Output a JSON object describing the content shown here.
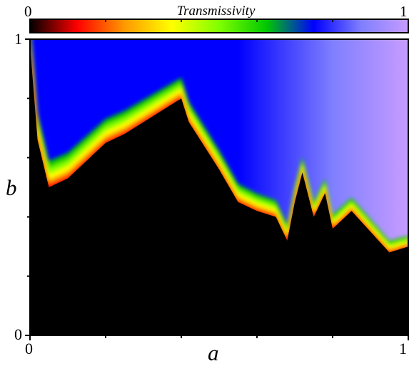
{
  "chart_data": {
    "type": "heatmap",
    "title": "",
    "colorbar": {
      "label": "Transmissivity",
      "min_label": "0",
      "max_label": "1",
      "range": [
        0,
        1
      ],
      "colormap": [
        "#000000",
        "#ff0000",
        "#ff9900",
        "#ffff00",
        "#7fff00",
        "#00c800",
        "#0000ff",
        "#7f7fff",
        "#c79cff"
      ]
    },
    "xlabel": "a",
    "ylabel": "b",
    "xlim": [
      0,
      1
    ],
    "ylim": [
      0,
      1
    ],
    "x_ticks": [
      "0",
      "1"
    ],
    "y_ticks": [
      "0",
      "1"
    ],
    "regions": [
      {
        "name": "zero transmissivity (black)",
        "value": 0
      },
      {
        "name": "high transmissivity (blue to violet)",
        "value": 1
      }
    ],
    "boundary_b": {
      "x": [
        0.0,
        0.02,
        0.05,
        0.1,
        0.15,
        0.2,
        0.25,
        0.3,
        0.35,
        0.4,
        0.42,
        0.45,
        0.5,
        0.55,
        0.6,
        0.65,
        0.68,
        0.7,
        0.72,
        0.75,
        0.78,
        0.8,
        0.85,
        0.9,
        0.95,
        1.0
      ],
      "y": [
        0.98,
        0.66,
        0.5,
        0.53,
        0.59,
        0.65,
        0.68,
        0.72,
        0.76,
        0.8,
        0.72,
        0.66,
        0.56,
        0.45,
        0.42,
        0.4,
        0.32,
        0.45,
        0.55,
        0.4,
        0.48,
        0.36,
        0.42,
        0.35,
        0.28,
        0.3
      ]
    }
  }
}
